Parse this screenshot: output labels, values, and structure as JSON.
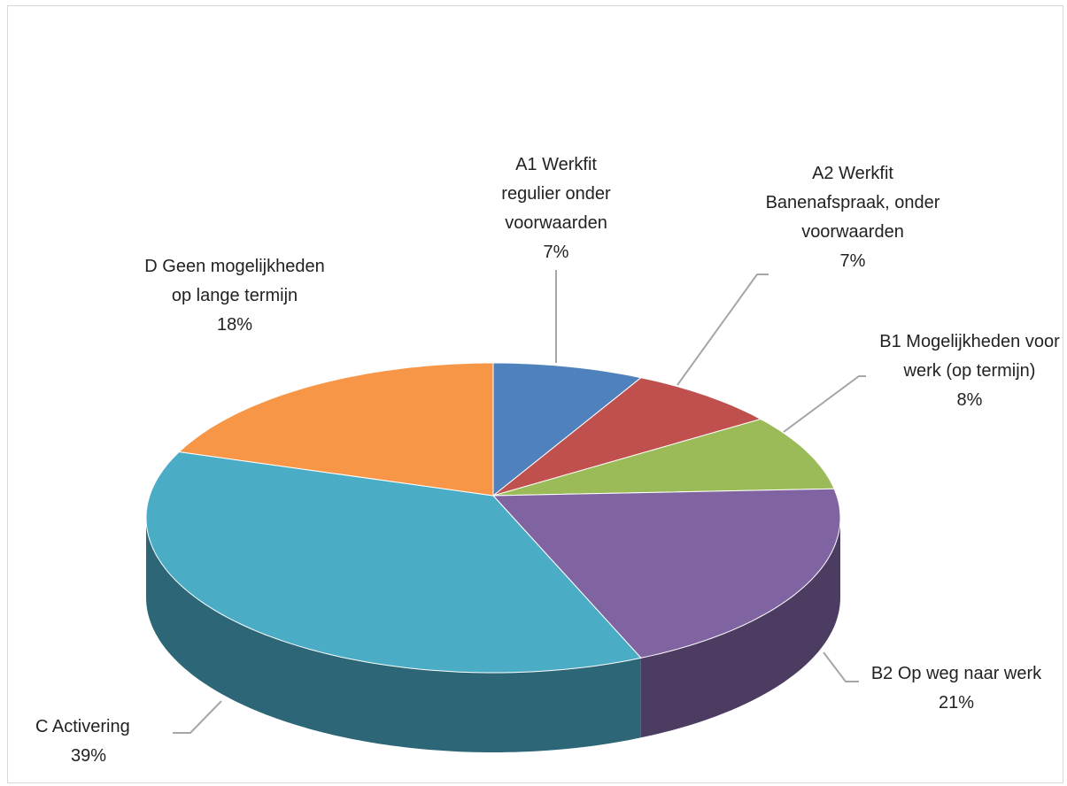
{
  "chart_data": {
    "type": "pie",
    "categories": [
      "A1 Werkfit regulier onder voorwaarden",
      "A2 Werkfit Banenafspraak, onder voorwaarden",
      "B1 Mogelijkheden voor werk (op termijn)",
      "B2 Op weg naar werk",
      "C Activering",
      "D Geen mogelijkheden op lange termijn"
    ],
    "values": [
      7,
      7,
      8,
      21,
      39,
      18
    ],
    "value_labels": [
      "7%",
      "7%",
      "8%",
      "21%",
      "39%",
      "18%"
    ],
    "colors": [
      "#4f81bd",
      "#c0504d",
      "#9bbb59",
      "#8064a2",
      "#4bacc6",
      "#f79646"
    ]
  }
}
